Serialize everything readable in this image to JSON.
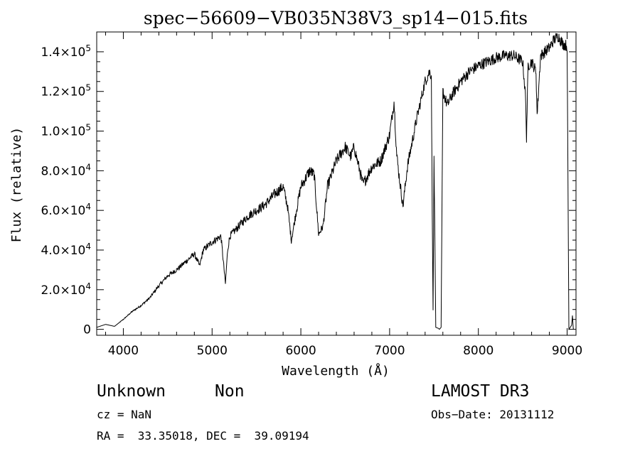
{
  "chart_data": {
    "type": "line",
    "title": "spec−56609−VB035N38V3_sp14−015.fits",
    "xlabel": "Wavelength (Å)",
    "ylabel": "Flux (relative)",
    "xlim": [
      3700,
      9100
    ],
    "ylim": [
      -3000,
      150000
    ],
    "x_ticks": [
      4000,
      5000,
      6000,
      7000,
      8000,
      9000
    ],
    "x_tick_labels": [
      "4000",
      "5000",
      "6000",
      "7000",
      "8000",
      "9000"
    ],
    "y_ticks": [
      {
        "value": 0,
        "mant": "0",
        "exp": ""
      },
      {
        "value": 20000,
        "mant": "2.0×10",
        "exp": "4"
      },
      {
        "value": 40000,
        "mant": "4.0×10",
        "exp": "4"
      },
      {
        "value": 60000,
        "mant": "6.0×10",
        "exp": "4"
      },
      {
        "value": 80000,
        "mant": "8.0×10",
        "exp": "4"
      },
      {
        "value": 100000,
        "mant": "1.0×10",
        "exp": "5"
      },
      {
        "value": 120000,
        "mant": "1.2×10",
        "exp": "5"
      },
      {
        "value": 140000,
        "mant": "1.4×10",
        "exp": "5"
      }
    ],
    "series": [
      {
        "name": "flux",
        "x": [
          3700,
          3800,
          3900,
          4000,
          4100,
          4200,
          4300,
          4400,
          4500,
          4600,
          4700,
          4800,
          4860,
          4900,
          5000,
          5100,
          5150,
          5175,
          5200,
          5300,
          5400,
          5500,
          5600,
          5700,
          5800,
          5850,
          5893,
          5950,
          6000,
          6100,
          6150,
          6200,
          6250,
          6300,
          6400,
          6500,
          6563,
          6600,
          6700,
          6800,
          6900,
          7000,
          7050,
          7080,
          7100,
          7150,
          7200,
          7300,
          7400,
          7450,
          7470,
          7480,
          7490,
          7500,
          7520,
          7550,
          7560,
          7580,
          7600,
          7650,
          7700,
          7800,
          7900,
          8000,
          8100,
          8200,
          8300,
          8400,
          8500,
          8530,
          8542,
          8560,
          8600,
          8650,
          8662,
          8700,
          8750,
          8800,
          8850,
          8900,
          8950,
          9000,
          9020,
          9050,
          9060,
          9070
        ],
        "y": [
          1000,
          2500,
          1500,
          5000,
          9000,
          12000,
          16000,
          22000,
          27000,
          30000,
          34000,
          38000,
          32000,
          40000,
          44000,
          47000,
          23000,
          40000,
          47000,
          52000,
          57000,
          60000,
          63000,
          68000,
          72000,
          62000,
          45000,
          60000,
          72000,
          80000,
          78000,
          48000,
          52000,
          72000,
          85000,
          92000,
          87000,
          92000,
          73000,
          82000,
          85000,
          98000,
          115000,
          88000,
          80000,
          62000,
          82000,
          105000,
          125000,
          130000,
          128000,
          60000,
          10000,
          88000,
          1000,
          500,
          0,
          1000,
          120000,
          113000,
          118000,
          125000,
          130000,
          133000,
          135000,
          137000,
          138000,
          138000,
          135000,
          118000,
          97000,
          133000,
          135000,
          130000,
          108000,
          138000,
          140000,
          142000,
          146000,
          148000,
          144000,
          143000,
          0,
          2000,
          7000,
          0
        ]
      }
    ],
    "annotations": {
      "object_class": "Unknown",
      "subclass": "Non",
      "survey": "LAMOST DR3",
      "cz": "cz = NaN",
      "obs_date": "Obs−Date: 20131112",
      "coords": "RA =  33.35018, DEC =  39.09194"
    }
  }
}
